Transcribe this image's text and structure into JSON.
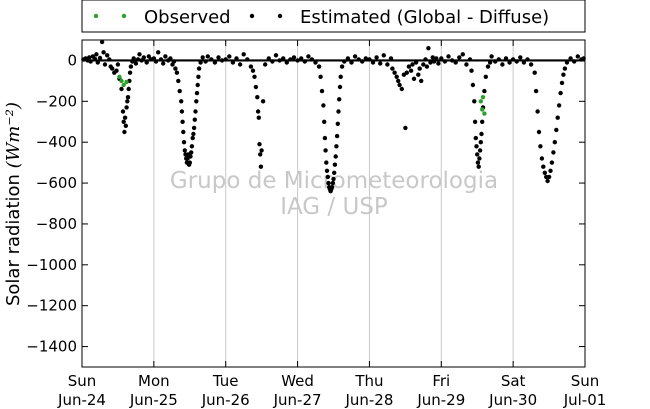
{
  "chart_data": {
    "type": "scatter",
    "title": "",
    "xlabel": "",
    "ylabel": "Solar radiation",
    "ylabel_unit": "(Wm⁻²)",
    "ylim": [
      -1500,
      100
    ],
    "yticks": [
      0,
      -200,
      -400,
      -600,
      -800,
      -1000,
      -1200,
      -1400
    ],
    "xlim": [
      0,
      7
    ],
    "xticks": [
      {
        "x": 0,
        "day": "Sun",
        "date": "Jun-24"
      },
      {
        "x": 1,
        "day": "Mon",
        "date": "Jun-25"
      },
      {
        "x": 2,
        "day": "Tue",
        "date": "Jun-26"
      },
      {
        "x": 3,
        "day": "Wed",
        "date": "Jun-27"
      },
      {
        "x": 4,
        "day": "Thu",
        "date": "Jun-28"
      },
      {
        "x": 5,
        "day": "Fri",
        "date": "Jun-29"
      },
      {
        "x": 6,
        "day": "Sat",
        "date": "Jun-30"
      },
      {
        "x": 7,
        "day": "Sun",
        "date": "Jul-01"
      }
    ],
    "grid": "vertical",
    "legend": {
      "placement": "top",
      "entries": [
        "Observed",
        "Estimated (Global - Diffuse)"
      ]
    },
    "reference_line_y": 0,
    "watermark": [
      "Grupo de Micrometeorologia",
      "IAG / USP"
    ],
    "colors": {
      "observed": "#2ca02c",
      "estimated": "#000000"
    },
    "series": [
      {
        "name": "Observed",
        "color": "#2ca02c",
        "points": [
          [
            0.52,
            -80
          ],
          [
            0.55,
            -100
          ],
          [
            0.58,
            -120
          ],
          [
            0.62,
            -105
          ],
          [
            5.55,
            -200
          ],
          [
            5.57,
            -240
          ],
          [
            5.6,
            -260
          ],
          [
            5.58,
            -180
          ]
        ]
      },
      {
        "name": "Estimated (Global - Diffuse)",
        "color": "#000000",
        "points": [
          [
            0.02,
            5
          ],
          [
            0.05,
            10
          ],
          [
            0.08,
            0
          ],
          [
            0.1,
            15
          ],
          [
            0.12,
            -5
          ],
          [
            0.15,
            20
          ],
          [
            0.18,
            8
          ],
          [
            0.2,
            30
          ],
          [
            0.22,
            -10
          ],
          [
            0.25,
            12
          ],
          [
            0.28,
            90
          ],
          [
            0.3,
            40
          ],
          [
            0.32,
            -20
          ],
          [
            0.35,
            25
          ],
          [
            0.38,
            5
          ],
          [
            0.4,
            -30
          ],
          [
            0.42,
            -40
          ],
          [
            0.45,
            -60
          ],
          [
            0.48,
            -50
          ],
          [
            0.5,
            -20
          ],
          [
            0.52,
            -90
          ],
          [
            0.55,
            -140
          ],
          [
            0.57,
            -250
          ],
          [
            0.58,
            -300
          ],
          [
            0.59,
            -350
          ],
          [
            0.6,
            -280
          ],
          [
            0.61,
            -320
          ],
          [
            0.62,
            -230
          ],
          [
            0.63,
            -200
          ],
          [
            0.64,
            -180
          ],
          [
            0.65,
            -140
          ],
          [
            0.66,
            -100
          ],
          [
            0.67,
            -60
          ],
          [
            0.68,
            -30
          ],
          [
            0.7,
            -5
          ],
          [
            0.72,
            10
          ],
          [
            0.75,
            -15
          ],
          [
            0.78,
            5
          ],
          [
            0.8,
            30
          ],
          [
            0.83,
            0
          ],
          [
            0.86,
            15
          ],
          [
            0.9,
            -10
          ],
          [
            0.93,
            20
          ],
          [
            0.96,
            5
          ],
          [
            1.0,
            10
          ],
          [
            1.03,
            -5
          ],
          [
            1.06,
            40
          ],
          [
            1.1,
            5
          ],
          [
            1.13,
            -15
          ],
          [
            1.16,
            20
          ],
          [
            1.2,
            0
          ],
          [
            1.23,
            10
          ],
          [
            1.26,
            -20
          ],
          [
            1.28,
            -5
          ],
          [
            1.3,
            -40
          ],
          [
            1.32,
            -60
          ],
          [
            1.34,
            -100
          ],
          [
            1.36,
            -150
          ],
          [
            1.38,
            -200
          ],
          [
            1.39,
            -250
          ],
          [
            1.4,
            -300
          ],
          [
            1.41,
            -350
          ],
          [
            1.42,
            -400
          ],
          [
            1.43,
            -440
          ],
          [
            1.44,
            -460
          ],
          [
            1.45,
            -480
          ],
          [
            1.46,
            -500
          ],
          [
            1.47,
            -480
          ],
          [
            1.48,
            -460
          ],
          [
            1.49,
            -510
          ],
          [
            1.5,
            -500
          ],
          [
            1.51,
            -470
          ],
          [
            1.52,
            -450
          ],
          [
            1.53,
            -420
          ],
          [
            1.54,
            -380
          ],
          [
            1.55,
            -360
          ],
          [
            1.56,
            -330
          ],
          [
            1.57,
            -290
          ],
          [
            1.58,
            -250
          ],
          [
            1.59,
            -200
          ],
          [
            1.6,
            -160
          ],
          [
            1.61,
            -120
          ],
          [
            1.62,
            -80
          ],
          [
            1.63,
            -40
          ],
          [
            1.65,
            -10
          ],
          [
            1.68,
            15
          ],
          [
            1.72,
            -5
          ],
          [
            1.75,
            20
          ],
          [
            1.8,
            5
          ],
          [
            1.85,
            -10
          ],
          [
            1.9,
            15
          ],
          [
            1.95,
            0
          ],
          [
            2.0,
            5
          ],
          [
            2.05,
            20
          ],
          [
            2.1,
            -10
          ],
          [
            2.15,
            10
          ],
          [
            2.2,
            -20
          ],
          [
            2.25,
            30
          ],
          [
            2.3,
            5
          ],
          [
            2.35,
            -30
          ],
          [
            2.38,
            -50
          ],
          [
            2.4,
            -80
          ],
          [
            2.42,
            -130
          ],
          [
            2.44,
            -180
          ],
          [
            2.45,
            -250
          ],
          [
            2.46,
            -280
          ],
          [
            2.47,
            -410
          ],
          [
            2.48,
            -460
          ],
          [
            2.49,
            -520
          ],
          [
            2.5,
            -440
          ],
          [
            2.52,
            -200
          ],
          [
            2.55,
            -20
          ],
          [
            2.6,
            10
          ],
          [
            2.65,
            -5
          ],
          [
            2.7,
            25
          ],
          [
            2.75,
            0
          ],
          [
            2.8,
            10
          ],
          [
            2.85,
            -10
          ],
          [
            2.9,
            5
          ],
          [
            2.95,
            15
          ],
          [
            3.0,
            0
          ],
          [
            3.05,
            10
          ],
          [
            3.1,
            -5
          ],
          [
            3.15,
            20
          ],
          [
            3.2,
            5
          ],
          [
            3.25,
            -10
          ],
          [
            3.3,
            -30
          ],
          [
            3.32,
            -80
          ],
          [
            3.34,
            -150
          ],
          [
            3.36,
            -220
          ],
          [
            3.37,
            -300
          ],
          [
            3.38,
            -380
          ],
          [
            3.39,
            -440
          ],
          [
            3.4,
            -500
          ],
          [
            3.41,
            -540
          ],
          [
            3.42,
            -570
          ],
          [
            3.43,
            -600
          ],
          [
            3.44,
            -620
          ],
          [
            3.45,
            -630
          ],
          [
            3.46,
            -640
          ],
          [
            3.47,
            -630
          ],
          [
            3.48,
            -620
          ],
          [
            3.49,
            -600
          ],
          [
            3.5,
            -580
          ],
          [
            3.51,
            -550
          ],
          [
            3.52,
            -510
          ],
          [
            3.53,
            -470
          ],
          [
            3.54,
            -420
          ],
          [
            3.55,
            -370
          ],
          [
            3.56,
            -310
          ],
          [
            3.57,
            -250
          ],
          [
            3.58,
            -190
          ],
          [
            3.59,
            -130
          ],
          [
            3.6,
            -80
          ],
          [
            3.62,
            -30
          ],
          [
            3.65,
            -5
          ],
          [
            3.7,
            10
          ],
          [
            3.75,
            -10
          ],
          [
            3.8,
            20
          ],
          [
            3.85,
            5
          ],
          [
            3.9,
            -5
          ],
          [
            3.95,
            10
          ],
          [
            4.0,
            5
          ],
          [
            4.05,
            -10
          ],
          [
            4.1,
            15
          ],
          [
            4.15,
            -15
          ],
          [
            4.2,
            25
          ],
          [
            4.25,
            -20
          ],
          [
            4.3,
            10
          ],
          [
            4.32,
            -40
          ],
          [
            4.35,
            -60
          ],
          [
            4.38,
            -80
          ],
          [
            4.4,
            -100
          ],
          [
            4.42,
            -120
          ],
          [
            4.45,
            -140
          ],
          [
            4.48,
            -70
          ],
          [
            4.5,
            -330
          ],
          [
            4.52,
            -60
          ],
          [
            4.55,
            -30
          ],
          [
            4.58,
            -50
          ],
          [
            4.6,
            -20
          ],
          [
            4.62,
            -90
          ],
          [
            4.65,
            -10
          ],
          [
            4.68,
            -70
          ],
          [
            4.7,
            -40
          ],
          [
            4.72,
            -100
          ],
          [
            4.75,
            -20
          ],
          [
            4.78,
            5
          ],
          [
            4.8,
            -30
          ],
          [
            4.82,
            60
          ],
          [
            4.85,
            -10
          ],
          [
            4.88,
            15
          ],
          [
            4.9,
            -5
          ],
          [
            4.93,
            10
          ],
          [
            4.96,
            -15
          ],
          [
            5.0,
            10
          ],
          [
            5.05,
            -5
          ],
          [
            5.1,
            20
          ],
          [
            5.15,
            0
          ],
          [
            5.2,
            -10
          ],
          [
            5.25,
            15
          ],
          [
            5.3,
            30
          ],
          [
            5.35,
            -20
          ],
          [
            5.4,
            5
          ],
          [
            5.42,
            -50
          ],
          [
            5.44,
            -120
          ],
          [
            5.46,
            -200
          ],
          [
            5.47,
            -300
          ],
          [
            5.48,
            -380
          ],
          [
            5.49,
            -420
          ],
          [
            5.5,
            -460
          ],
          [
            5.51,
            -500
          ],
          [
            5.52,
            -520
          ],
          [
            5.53,
            -480
          ],
          [
            5.54,
            -440
          ],
          [
            5.55,
            -400
          ],
          [
            5.56,
            -360
          ],
          [
            5.57,
            -300
          ],
          [
            5.58,
            -230
          ],
          [
            5.6,
            -150
          ],
          [
            5.62,
            -80
          ],
          [
            5.65,
            -30
          ],
          [
            5.68,
            -10
          ],
          [
            5.7,
            20
          ],
          [
            5.75,
            -5
          ],
          [
            5.8,
            5
          ],
          [
            5.85,
            -20
          ],
          [
            5.9,
            10
          ],
          [
            5.95,
            -10
          ],
          [
            6.0,
            5
          ],
          [
            6.05,
            -5
          ],
          [
            6.1,
            15
          ],
          [
            6.15,
            -10
          ],
          [
            6.2,
            5
          ],
          [
            6.25,
            -20
          ],
          [
            6.3,
            -60
          ],
          [
            6.32,
            -150
          ],
          [
            6.34,
            -250
          ],
          [
            6.36,
            -350
          ],
          [
            6.38,
            -420
          ],
          [
            6.4,
            -480
          ],
          [
            6.42,
            -520
          ],
          [
            6.44,
            -550
          ],
          [
            6.46,
            -570
          ],
          [
            6.48,
            -590
          ],
          [
            6.5,
            -570
          ],
          [
            6.52,
            -540
          ],
          [
            6.54,
            -500
          ],
          [
            6.56,
            -450
          ],
          [
            6.58,
            -400
          ],
          [
            6.6,
            -340
          ],
          [
            6.62,
            -280
          ],
          [
            6.64,
            -220
          ],
          [
            6.66,
            -160
          ],
          [
            6.68,
            -110
          ],
          [
            6.7,
            -70
          ],
          [
            6.72,
            -40
          ],
          [
            6.75,
            -10
          ],
          [
            6.8,
            10
          ],
          [
            6.85,
            -5
          ],
          [
            6.9,
            20
          ],
          [
            6.95,
            5
          ],
          [
            6.98,
            10
          ]
        ]
      }
    ]
  }
}
